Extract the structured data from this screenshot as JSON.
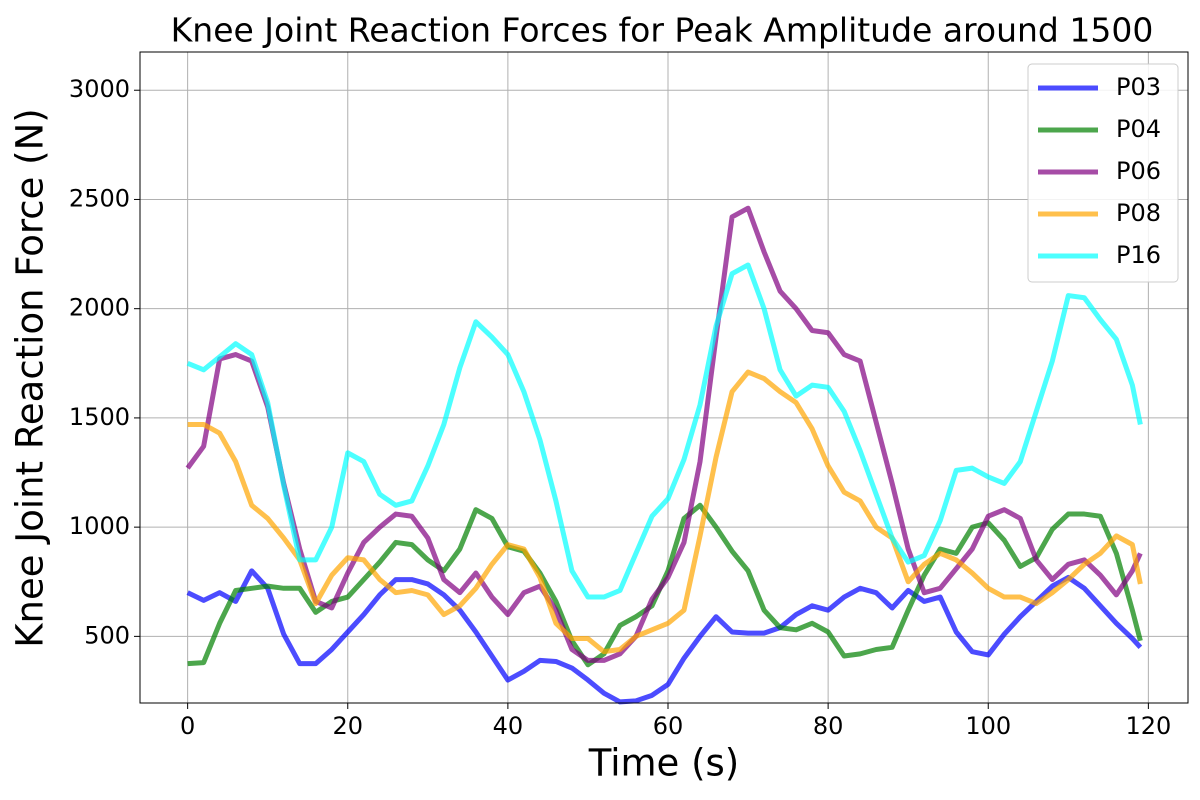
{
  "chart_data": {
    "type": "line",
    "title": "Knee Joint Reaction Forces for Peak Amplitude around 1500",
    "x_label": "Time (s)",
    "y_label": "Knee Joint Reaction Force (N)",
    "x": [
      0,
      2,
      4,
      6,
      8,
      10,
      12,
      14,
      16,
      18,
      20,
      22,
      24,
      26,
      28,
      30,
      32,
      34,
      36,
      38,
      40,
      42,
      44,
      46,
      48,
      50,
      52,
      54,
      56,
      58,
      60,
      62,
      64,
      66,
      68,
      70,
      72,
      74,
      76,
      78,
      80,
      82,
      84,
      86,
      88,
      90,
      92,
      94,
      96,
      98,
      100,
      102,
      104,
      106,
      108,
      110,
      112,
      114,
      116,
      118,
      119
    ],
    "series": [
      {
        "name": "P03",
        "color": "#0000ff",
        "values": [
          700,
          665,
          700,
          660,
          800,
          720,
          510,
          375,
          375,
          440,
          520,
          600,
          690,
          760,
          760,
          740,
          690,
          620,
          520,
          410,
          300,
          340,
          390,
          385,
          355,
          300,
          240,
          200,
          205,
          230,
          280,
          400,
          500,
          590,
          520,
          515,
          515,
          540,
          600,
          640,
          620,
          680,
          720,
          700,
          630,
          710,
          660,
          680,
          520,
          430,
          415,
          510,
          590,
          660,
          730,
          770,
          720,
          640,
          560,
          490,
          450
        ]
      },
      {
        "name": "P04",
        "color": "#008000",
        "values": [
          375,
          380,
          560,
          710,
          720,
          730,
          720,
          720,
          610,
          660,
          680,
          760,
          840,
          930,
          920,
          850,
          800,
          900,
          1080,
          1040,
          910,
          890,
          790,
          660,
          480,
          370,
          420,
          550,
          590,
          640,
          800,
          1040,
          1100,
          1000,
          890,
          800,
          620,
          540,
          530,
          560,
          520,
          410,
          420,
          440,
          450,
          620,
          780,
          900,
          880,
          1000,
          1020,
          940,
          820,
          860,
          990,
          1060,
          1060,
          1050,
          880,
          620,
          480
        ]
      },
      {
        "name": "P06",
        "color": "#800080",
        "values": [
          1270,
          1370,
          1770,
          1790,
          1760,
          1550,
          1200,
          900,
          660,
          630,
          790,
          930,
          1000,
          1060,
          1050,
          950,
          760,
          700,
          790,
          680,
          600,
          700,
          730,
          620,
          440,
          390,
          390,
          420,
          500,
          670,
          770,
          930,
          1300,
          1870,
          2420,
          2460,
          2260,
          2080,
          2000,
          1900,
          1890,
          1790,
          1760,
          1480,
          1200,
          900,
          700,
          720,
          810,
          900,
          1050,
          1080,
          1040,
          850,
          760,
          830,
          850,
          780,
          690,
          800,
          880
        ]
      },
      {
        "name": "P08",
        "color": "#ffa500",
        "values": [
          1470,
          1470,
          1430,
          1300,
          1100,
          1040,
          950,
          850,
          650,
          780,
          860,
          850,
          760,
          700,
          710,
          690,
          600,
          640,
          720,
          830,
          920,
          900,
          770,
          560,
          490,
          490,
          430,
          440,
          500,
          530,
          560,
          620,
          960,
          1320,
          1620,
          1710,
          1680,
          1620,
          1570,
          1450,
          1280,
          1160,
          1120,
          1000,
          950,
          750,
          830,
          880,
          850,
          790,
          720,
          680,
          680,
          650,
          700,
          760,
          830,
          880,
          960,
          920,
          740
        ]
      },
      {
        "name": "P16",
        "color": "#00ffff",
        "values": [
          1750,
          1720,
          1780,
          1840,
          1790,
          1570,
          1190,
          850,
          850,
          1000,
          1340,
          1300,
          1150,
          1100,
          1120,
          1280,
          1470,
          1730,
          1940,
          1870,
          1790,
          1620,
          1400,
          1120,
          800,
          680,
          680,
          710,
          880,
          1050,
          1130,
          1310,
          1560,
          1920,
          2160,
          2200,
          2000,
          1720,
          1600,
          1650,
          1640,
          1530,
          1350,
          1150,
          950,
          840,
          870,
          1030,
          1260,
          1270,
          1230,
          1200,
          1300,
          1530,
          1760,
          2060,
          2050,
          1950,
          1860,
          1650,
          1470
        ]
      }
    ],
    "xlim": [
      -5.95,
      124.95
    ],
    "ylim": [
      195,
      3175
    ],
    "xticks": [
      0,
      20,
      40,
      60,
      80,
      100,
      120
    ],
    "yticks": [
      500,
      1000,
      1500,
      2000,
      2500,
      3000
    ],
    "grid": true,
    "legend": "upper right",
    "line_opacity": 0.7
  }
}
